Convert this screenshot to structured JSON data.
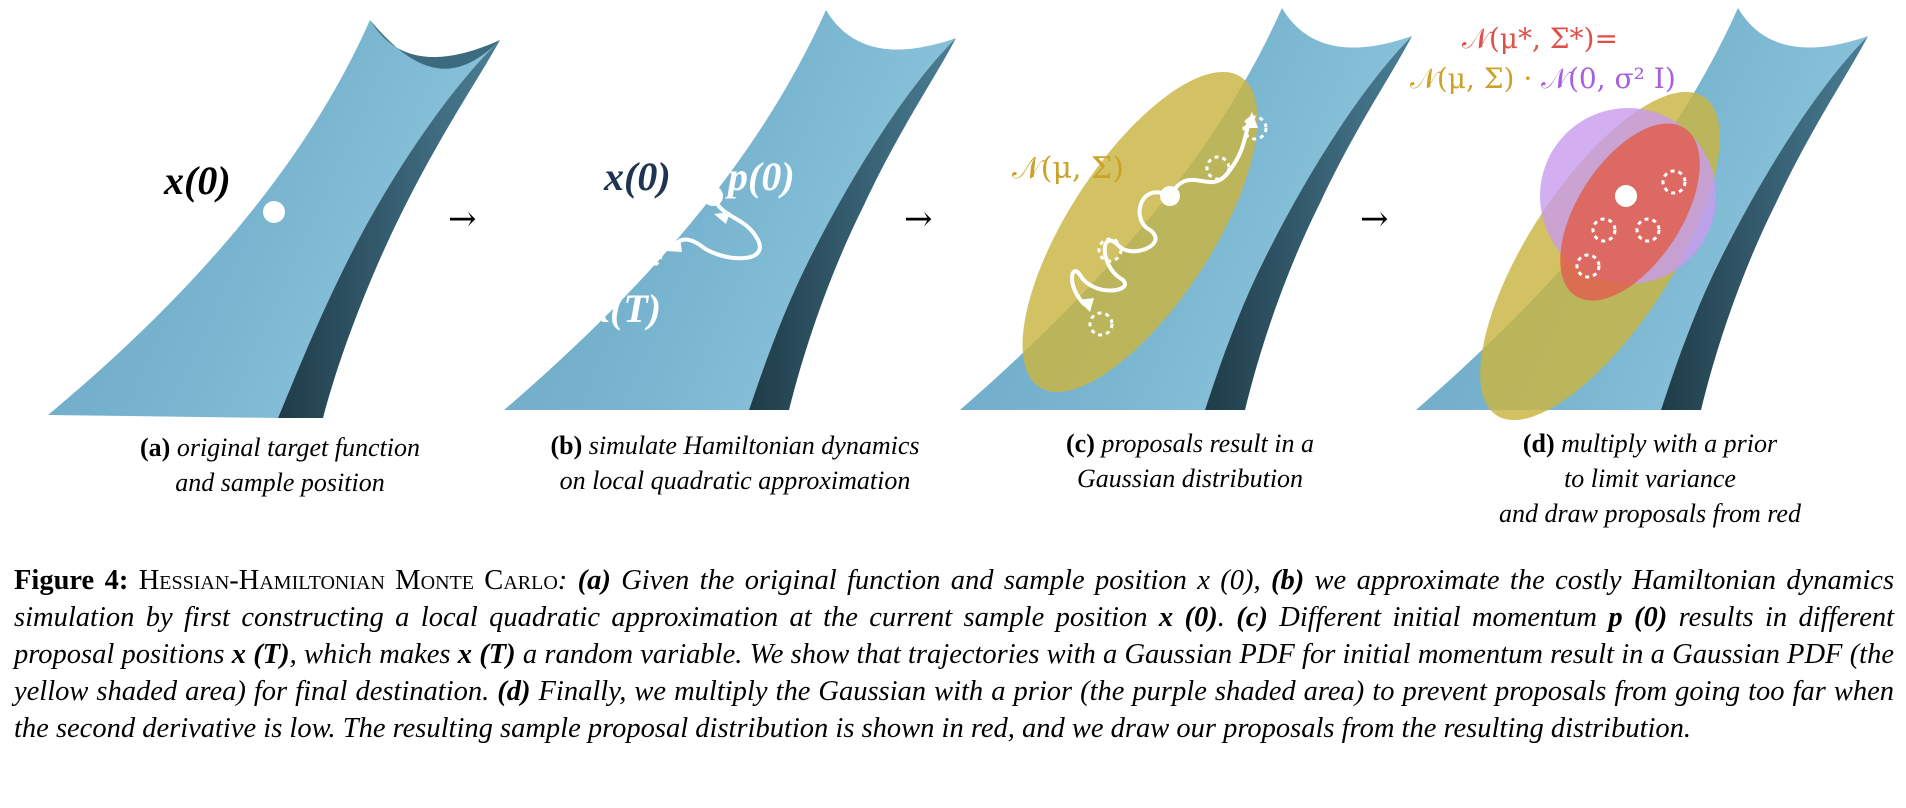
{
  "panels": [
    {
      "id": "a",
      "line1": "original target function",
      "line2": "and sample position",
      "line3": ""
    },
    {
      "id": "b",
      "line1": "simulate Hamiltonian dynamics",
      "line2": "on local quadratic approximation",
      "line3": ""
    },
    {
      "id": "c",
      "line1": "proposals result in a",
      "line2": "Gaussian distribution",
      "line3": ""
    },
    {
      "id": "d",
      "line1": "multiply with a prior",
      "line2": "to limit variance",
      "line3": "and draw proposals from red"
    }
  ],
  "annotations": {
    "x0": "x(0)",
    "p0": "p(0)",
    "xT": "x(T)",
    "gaussian": "𝒩(μ, Σ)",
    "posterior_line1": "𝒩(μ*, Σ*)=",
    "posterior_line2a": "𝒩(μ, Σ) · ",
    "posterior_line2b": "𝒩(0, σ² I)",
    "arrow": "→"
  },
  "caption": {
    "fig_label": "Figure 4:",
    "title": "Hessian-Hamiltonian Monte Carlo",
    "text_1": ": ",
    "a": "(a)",
    "text_a": " Given the original function and sample position ",
    "x0_plain": "x (0)",
    "text_comma": ", ",
    "b": "(b)",
    "text_b": " we approximate the costly Hamiltonian dynamics simulation by first constructing a local quadratic approximation at the current sample position ",
    "x0_bold": "x (0)",
    "text_dot": ". ",
    "c": "(c)",
    "text_c1": " Different initial momentum ",
    "p0_bold": "p (0)",
    "text_c2": " results in different proposal positions ",
    "xT_bold": "x (T)",
    "text_c3": ", which makes ",
    "xT_bold2": "x (T)",
    "text_c4": " a random variable. We show that trajectories with a Gaussian PDF for initial momentum result in a Gaussian PDF (the yellow shaded area) for final destination. ",
    "d": "(d)",
    "text_d": " Finally, we multiply the Gaussian with a prior (the purple shaded area) to prevent proposals from going too far when the second derivative is low. The resulting sample proposal distribution is shown in red, and we draw our proposals from the resulting distribution."
  },
  "colors": {
    "surface": "#6fadca",
    "surface_dark": "#2f5566",
    "yellow": "#c9b542",
    "purple": "#c89bee",
    "red": "#e0604f",
    "label_dark": "#1f3352",
    "gold_text": "#c9a227",
    "purple_text": "#a85ee0",
    "red_text": "#e0504a"
  }
}
